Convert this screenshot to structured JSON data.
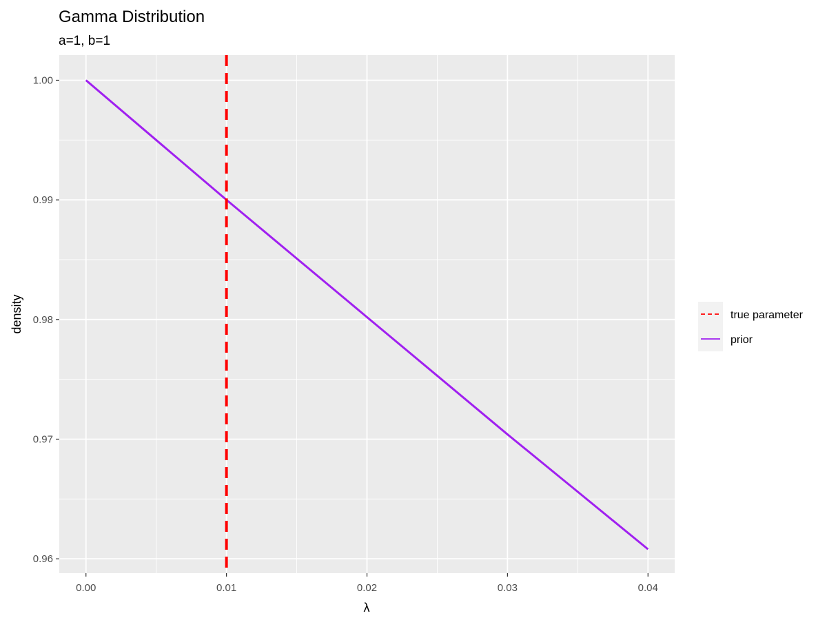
{
  "chart_data": {
    "type": "line",
    "title": "Gamma Distribution",
    "subtitle": "a=1, b=1",
    "xlabel": "λ",
    "ylabel": "density",
    "xlim": [
      -0.0019,
      0.0419
    ],
    "ylim": [
      0.9588,
      1.0021
    ],
    "x_ticks": [
      0.0,
      0.01,
      0.02,
      0.03,
      0.04
    ],
    "x_tick_labels": [
      "0.00",
      "0.01",
      "0.02",
      "0.03",
      "0.04"
    ],
    "y_ticks": [
      0.96,
      0.97,
      0.98,
      0.99,
      1.0
    ],
    "y_tick_labels": [
      "0.96",
      "0.97",
      "0.98",
      "0.99",
      "1.00"
    ],
    "grid": true,
    "series": [
      {
        "name": "prior",
        "color": "#a020f0",
        "style": "solid",
        "x": [
          0.0,
          0.005,
          0.01,
          0.015,
          0.02,
          0.025,
          0.03,
          0.035,
          0.04
        ],
        "y": [
          1.0,
          0.995,
          0.99,
          0.9851,
          0.9802,
          0.9753,
          0.9704,
          0.9656,
          0.9608
        ]
      }
    ],
    "vlines": [
      {
        "name": "true parameter",
        "x": 0.01,
        "color": "#ff0000",
        "style": "dashed"
      }
    ],
    "legend": {
      "position": "right",
      "entries": [
        {
          "label": "true parameter",
          "color": "#ff0000",
          "style": "dashed"
        },
        {
          "label": "prior",
          "color": "#a020f0",
          "style": "solid"
        }
      ]
    },
    "colors": {
      "panel_background": "#ebebeb",
      "grid": "#ffffff",
      "legend_background": "#f2f2f2"
    }
  }
}
